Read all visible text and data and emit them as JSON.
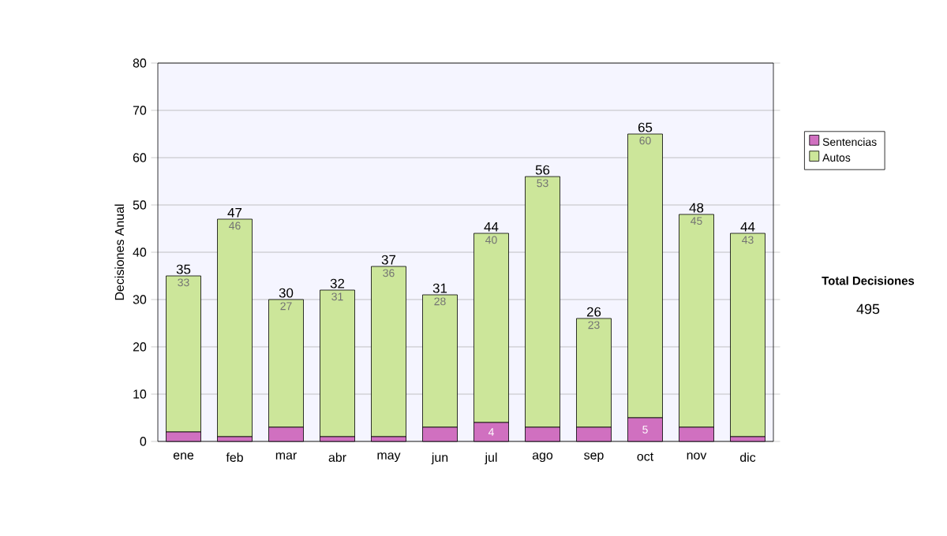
{
  "chart_data": {
    "type": "bar",
    "stacked": true,
    "ylabel": "Decisiones Anual",
    "categories": [
      "ene",
      "feb",
      "mar",
      "abr",
      "may",
      "jun",
      "jul",
      "ago",
      "sep",
      "oct",
      "nov",
      "dic"
    ],
    "series": [
      {
        "name": "Sentencias",
        "color": "#d070c0",
        "values": [
          2,
          1,
          3,
          1,
          1,
          3,
          4,
          3,
          3,
          5,
          3,
          1
        ],
        "value_labels": [
          null,
          null,
          null,
          null,
          null,
          null,
          "4",
          null,
          null,
          "5",
          null,
          null
        ]
      },
      {
        "name": "Autos",
        "color": "#cce69a",
        "values": [
          33,
          46,
          27,
          31,
          36,
          28,
          40,
          53,
          23,
          60,
          45,
          43
        ],
        "value_labels": [
          "33",
          "46",
          "27",
          "31",
          "36",
          "28",
          "40",
          "53",
          "23",
          "60",
          "45",
          "43"
        ]
      }
    ],
    "totals": [
      "35",
      "47",
      "30",
      "32",
      "37",
      "31",
      "44",
      "56",
      "26",
      "65",
      "48",
      "44"
    ],
    "ylim": [
      0,
      80
    ],
    "yticks": [
      0,
      10,
      20,
      30,
      40,
      50,
      60,
      70,
      80
    ],
    "grid": "y",
    "legend": "right",
    "annotations": [
      "Total Decisiones",
      "495"
    ]
  }
}
